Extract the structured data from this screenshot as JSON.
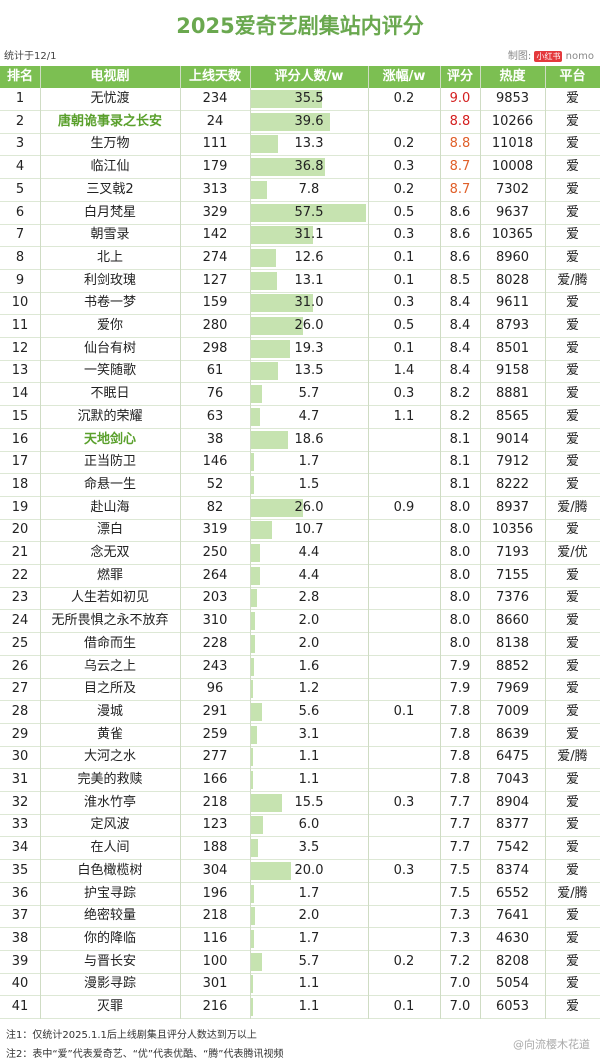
{
  "header": {
    "title": "2025爱奇艺剧集站内评分",
    "subtitle": "统计于12/1",
    "maker_label": "制图:",
    "maker_badge": "小红书",
    "maker_name": "nomo"
  },
  "table": {
    "columns": [
      "排名",
      "电视剧",
      "上线天数",
      "评分人数/w",
      "涨幅/w",
      "评分",
      "热度",
      "平台"
    ],
    "rows": [
      [
        "1",
        "无忧渡",
        "234",
        "35.5",
        "0.2",
        "9.0",
        "9853",
        "爱"
      ],
      [
        "2",
        "唐朝诡事录之长安",
        "24",
        "39.6",
        null,
        "8.8",
        "10266",
        "爱"
      ],
      [
        "3",
        "生万物",
        "111",
        "13.3",
        "0.2",
        "8.8",
        "11018",
        "爱"
      ],
      [
        "4",
        "临江仙",
        "179",
        "36.8",
        "0.3",
        "8.7",
        "10008",
        "爱"
      ],
      [
        "5",
        "三叉戟2",
        "313",
        "7.8",
        "0.2",
        "8.7",
        "7302",
        "爱"
      ],
      [
        "6",
        "白月梵星",
        "329",
        "57.5",
        "0.5",
        "8.6",
        "9637",
        "爱"
      ],
      [
        "7",
        "朝雪录",
        "142",
        "31.1",
        "0.3",
        "8.6",
        "10365",
        "爱"
      ],
      [
        "8",
        "北上",
        "274",
        "12.6",
        "0.1",
        "8.6",
        "8960",
        "爱"
      ],
      [
        "9",
        "利剑玫瑰",
        "127",
        "13.1",
        "0.1",
        "8.5",
        "8028",
        "爱/腾"
      ],
      [
        "10",
        "书卷一梦",
        "159",
        "31.0",
        "0.3",
        "8.4",
        "9611",
        "爱"
      ],
      [
        "11",
        "爱你",
        "280",
        "26.0",
        "0.5",
        "8.4",
        "8793",
        "爱"
      ],
      [
        "12",
        "仙台有树",
        "298",
        "19.3",
        "0.1",
        "8.4",
        "8501",
        "爱"
      ],
      [
        "13",
        "一笑随歌",
        "61",
        "13.5",
        "1.4",
        "8.4",
        "9158",
        "爱"
      ],
      [
        "14",
        "不眠日",
        "76",
        "5.7",
        "0.3",
        "8.2",
        "8881",
        "爱"
      ],
      [
        "15",
        "沉默的荣耀",
        "63",
        "4.7",
        "1.1",
        "8.2",
        "8565",
        "爱"
      ],
      [
        "16",
        "天地剑心",
        "38",
        "18.6",
        null,
        "8.1",
        "9014",
        "爱"
      ],
      [
        "17",
        "正当防卫",
        "146",
        "1.7",
        null,
        "8.1",
        "7912",
        "爱"
      ],
      [
        "18",
        "命悬一生",
        "52",
        "1.5",
        null,
        "8.1",
        "8222",
        "爱"
      ],
      [
        "19",
        "赴山海",
        "82",
        "26.0",
        "0.9",
        "8.0",
        "8937",
        "爱/腾"
      ],
      [
        "20",
        "漂白",
        "319",
        "10.7",
        null,
        "8.0",
        "10356",
        "爱"
      ],
      [
        "21",
        "念无双",
        "250",
        "4.4",
        null,
        "8.0",
        "7193",
        "爱/优"
      ],
      [
        "22",
        "燃罪",
        "264",
        "4.4",
        null,
        "8.0",
        "7155",
        "爱"
      ],
      [
        "23",
        "人生若如初见",
        "203",
        "2.8",
        null,
        "8.0",
        "7376",
        "爱"
      ],
      [
        "24",
        "无所畏惧之永不放弃",
        "310",
        "2.0",
        null,
        "8.0",
        "8660",
        "爱"
      ],
      [
        "25",
        "借命而生",
        "228",
        "2.0",
        null,
        "8.0",
        "8138",
        "爱"
      ],
      [
        "26",
        "乌云之上",
        "243",
        "1.6",
        null,
        "7.9",
        "8852",
        "爱"
      ],
      [
        "27",
        "目之所及",
        "96",
        "1.2",
        null,
        "7.9",
        "7969",
        "爱"
      ],
      [
        "28",
        "漫城",
        "291",
        "5.6",
        "0.1",
        "7.8",
        "7009",
        "爱"
      ],
      [
        "29",
        "黄雀",
        "259",
        "3.1",
        null,
        "7.8",
        "8639",
        "爱"
      ],
      [
        "30",
        "大河之水",
        "277",
        "1.1",
        null,
        "7.8",
        "6475",
        "爱/腾"
      ],
      [
        "31",
        "完美的救赎",
        "166",
        "1.1",
        null,
        "7.8",
        "7043",
        "爱"
      ],
      [
        "32",
        "淮水竹亭",
        "218",
        "15.5",
        "0.3",
        "7.7",
        "8904",
        "爱"
      ],
      [
        "33",
        "定风波",
        "123",
        "6.0",
        null,
        "7.7",
        "8377",
        "爱"
      ],
      [
        "34",
        "在人间",
        "188",
        "3.5",
        null,
        "7.7",
        "7542",
        "爱"
      ],
      [
        "35",
        "白色橄榄树",
        "304",
        "20.0",
        "0.3",
        "7.5",
        "8374",
        "爱"
      ],
      [
        "36",
        "护宝寻踪",
        "196",
        "1.7",
        null,
        "7.5",
        "6552",
        "爱/腾"
      ],
      [
        "37",
        "绝密较量",
        "218",
        "2.0",
        null,
        "7.3",
        "7641",
        "爱"
      ],
      [
        "38",
        "你的降临",
        "116",
        "1.7",
        null,
        "7.3",
        "4630",
        "爱"
      ],
      [
        "39",
        "与晋长安",
        "100",
        "5.7",
        "0.2",
        "7.2",
        "8208",
        "爱"
      ],
      [
        "40",
        "漫影寻踪",
        "301",
        "1.1",
        null,
        "7.0",
        "5054",
        "爱"
      ],
      [
        "41",
        "灭罪",
        "216",
        "1.1",
        "0.1",
        "7.0",
        "6053",
        "爱"
      ]
    ]
  },
  "footer": {
    "notes": [
      "注1：仅统计2025.1.1后上线剧集且评分人数达到万以上",
      "注2：表中“爱”代表爱奇艺、“优”代表优酷、“腾”代表腾讯视频"
    ],
    "watermark": "@向流樱木花道"
  }
}
